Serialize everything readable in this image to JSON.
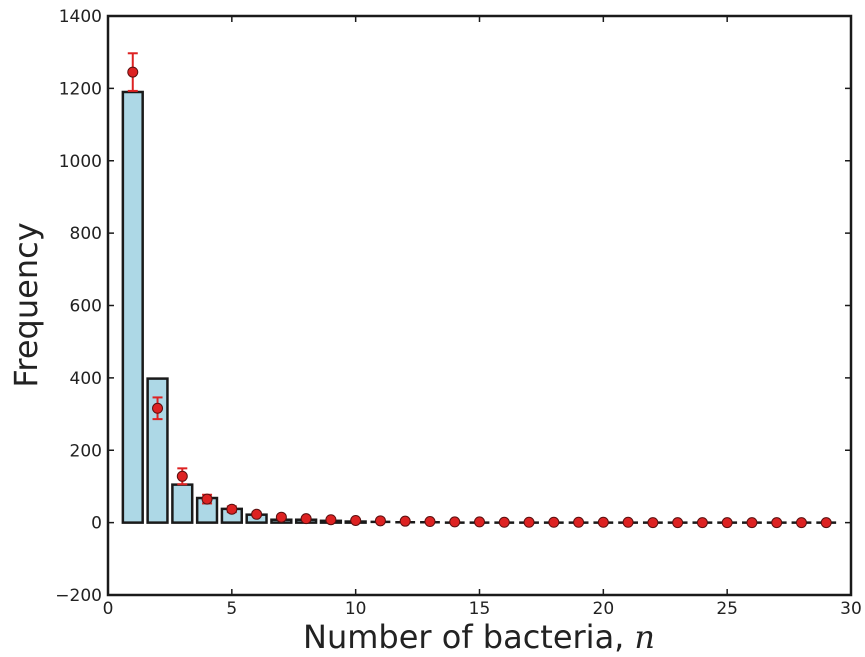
{
  "chart_data": {
    "type": "bar",
    "title": "",
    "xlabel": "Number of bacteria,",
    "xlabel_variable": "n",
    "ylabel": "Frequency",
    "xlim": [
      0,
      30
    ],
    "ylim": [
      -200,
      1400
    ],
    "xticks": [
      "0",
      "5",
      "10",
      "15",
      "20",
      "25",
      "30"
    ],
    "yticks": [
      "−200",
      "0",
      "200",
      "400",
      "600",
      "800",
      "1000",
      "1200",
      "1400"
    ],
    "grid": false,
    "legend": "none",
    "bar_color": "#add8e6",
    "bar_edge_color": "#1a1a1a",
    "marker_color": "#dd2222",
    "bars": {
      "x": [
        1,
        2,
        3,
        4,
        5,
        6,
        7,
        8,
        9,
        10,
        11,
        12,
        13,
        14,
        15,
        16,
        17,
        18,
        19,
        20,
        21,
        22,
        23,
        24,
        25,
        26,
        27,
        28,
        29
      ],
      "values": [
        1190,
        398,
        105,
        68,
        38,
        22,
        8,
        8,
        5,
        3,
        2,
        1,
        1,
        0,
        0,
        0,
        0,
        0,
        0,
        0,
        0,
        0,
        0,
        0,
        0,
        0,
        0,
        0,
        0
      ]
    },
    "points": {
      "x": [
        1,
        2,
        3,
        4,
        5,
        6,
        7,
        8,
        9,
        10,
        11,
        12,
        13,
        14,
        15,
        16,
        17,
        18,
        19,
        20,
        21,
        22,
        23,
        24,
        25,
        26,
        27,
        28,
        29
      ],
      "values": [
        1245,
        316,
        128,
        65,
        37,
        23,
        15,
        11,
        8,
        6,
        5,
        4,
        3,
        2,
        2,
        1,
        1,
        1,
        1,
        1,
        1,
        0,
        0,
        0,
        0,
        0,
        0,
        0,
        0
      ],
      "error": [
        52,
        30,
        22,
        12,
        8,
        5,
        3,
        2,
        2,
        1,
        1,
        1,
        0,
        0,
        0,
        0,
        0,
        0,
        0,
        0,
        0,
        0,
        0,
        0,
        0,
        0,
        0,
        0,
        0
      ]
    }
  }
}
